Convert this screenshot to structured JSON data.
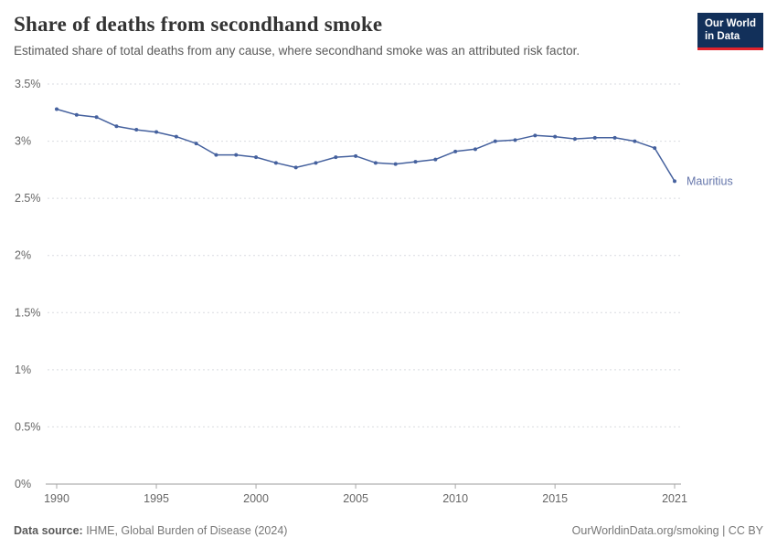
{
  "header": {
    "title": "Share of deaths from secondhand smoke",
    "subtitle": "Estimated share of total deaths from any cause, where secondhand smoke was an attributed risk factor.",
    "logo": {
      "line1": "Our World",
      "line2": "in Data",
      "bg_color": "#12305a",
      "accent_color": "#e0232c"
    }
  },
  "chart_data": {
    "type": "line",
    "title": "Share of deaths from secondhand smoke",
    "xlabel": "",
    "ylabel": "",
    "xlim": [
      1990,
      2021
    ],
    "ylim": [
      0,
      3.5
    ],
    "grid": "dashed-horizontal",
    "xticks": [
      1990,
      1995,
      2000,
      2005,
      2010,
      2015,
      2021
    ],
    "ytick_values": [
      0,
      0.5,
      1,
      1.5,
      2,
      2.5,
      3,
      3.5
    ],
    "ytick_labels": [
      "0%",
      "0.5%",
      "1%",
      "1.5%",
      "2%",
      "2.5%",
      "3%",
      "3.5%"
    ],
    "series": [
      {
        "name": "Mauritius",
        "color": "#45619e",
        "label_color": "#6576ab",
        "years": [
          1990,
          1991,
          1992,
          1993,
          1994,
          1995,
          1996,
          1997,
          1998,
          1999,
          2000,
          2001,
          2002,
          2003,
          2004,
          2005,
          2006,
          2007,
          2008,
          2009,
          2010,
          2011,
          2012,
          2013,
          2014,
          2015,
          2016,
          2017,
          2018,
          2019,
          2020,
          2021
        ],
        "values": [
          3.28,
          3.23,
          3.21,
          3.13,
          3.1,
          3.08,
          3.04,
          2.98,
          2.88,
          2.88,
          2.86,
          2.81,
          2.77,
          2.81,
          2.86,
          2.87,
          2.81,
          2.8,
          2.82,
          2.84,
          2.91,
          2.93,
          3.0,
          3.01,
          3.05,
          3.04,
          3.02,
          3.03,
          3.03,
          3.0,
          2.94,
          2.65
        ]
      }
    ],
    "end_label": "Mauritius"
  },
  "footer": {
    "source_label": "Data source:",
    "source_text": " IHME, Global Burden of Disease (2024)",
    "link_text": "OurWorldinData.org/smoking | CC BY"
  }
}
